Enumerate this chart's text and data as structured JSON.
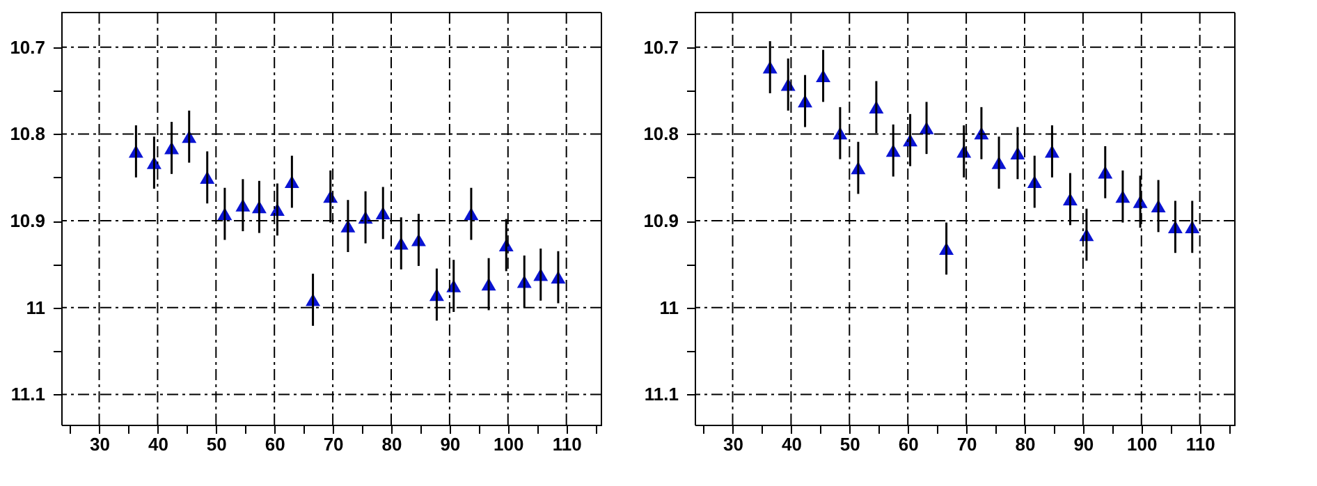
{
  "chart_data": [
    {
      "type": "scatter",
      "marker": "triangle",
      "grid": true,
      "legend": false,
      "x": [
        36.3,
        39.4,
        42.4,
        45.4,
        48.5,
        51.5,
        54.6,
        57.4,
        60.5,
        63.0,
        66.6,
        69.6,
        72.6,
        75.6,
        78.6,
        81.7,
        84.7,
        87.8,
        90.7,
        93.7,
        96.7,
        99.7,
        102.8,
        105.6,
        108.6
      ],
      "series": [
        {
          "color": "#0a14d2",
          "values": [
            10.82,
            10.833,
            10.816,
            10.803,
            10.85,
            10.892,
            10.882,
            10.884,
            10.887,
            10.855,
            10.991,
            10.872,
            10.906,
            10.896,
            10.891,
            10.926,
            10.922,
            10.985,
            10.975,
            10.892,
            10.973,
            10.928,
            10.97,
            10.962,
            10.965
          ],
          "errors": [
            0.03,
            0.03,
            0.03,
            0.03,
            0.03,
            0.03,
            0.03,
            0.03,
            0.03,
            0.03,
            0.03,
            0.03,
            0.03,
            0.03,
            0.03,
            0.03,
            0.03,
            0.03,
            0.03,
            0.03,
            0.03,
            0.03,
            0.03,
            0.03,
            0.03
          ]
        }
      ],
      "xlim": [
        23.5,
        116
      ],
      "ylim": [
        11.135,
        10.66
      ],
      "xticks": [
        {
          "value": 25,
          "label": null
        },
        30,
        {
          "value": 35,
          "label": null
        },
        40,
        {
          "value": 45,
          "label": null
        },
        50,
        {
          "value": 55,
          "label": null
        },
        60,
        {
          "value": 65,
          "label": null
        },
        70,
        {
          "value": 75,
          "label": null
        },
        80,
        {
          "value": 85,
          "label": null
        },
        90,
        {
          "value": 95,
          "label": null
        },
        100,
        {
          "value": 105,
          "label": null
        },
        110,
        {
          "value": 115,
          "label": null
        }
      ],
      "yticks": [
        10.7,
        {
          "value": 10.75,
          "label": null
        },
        10.8,
        {
          "value": 10.85,
          "label": null
        },
        10.9,
        {
          "value": 10.95,
          "label": null
        },
        11,
        {
          "value": 11.05,
          "label": null
        },
        11.1
      ]
    },
    {
      "type": "scatter",
      "marker": "triangle",
      "grid": true,
      "legend": false,
      "x": [
        36.4,
        39.5,
        42.4,
        45.5,
        48.4,
        51.5,
        54.6,
        57.5,
        60.4,
        63.2,
        66.6,
        69.6,
        72.6,
        75.6,
        78.8,
        81.7,
        84.7,
        87.8,
        90.6,
        93.8,
        96.8,
        99.8,
        102.9,
        105.8,
        108.7
      ],
      "series": [
        {
          "color": "#0a14d2",
          "values": [
            10.723,
            10.743,
            10.762,
            10.733,
            10.799,
            10.839,
            10.769,
            10.819,
            10.807,
            10.793,
            10.932,
            10.82,
            10.799,
            10.833,
            10.822,
            10.855,
            10.82,
            10.875,
            10.916,
            10.844,
            10.872,
            10.878,
            10.883,
            10.907,
            10.907
          ],
          "errors": [
            0.03,
            0.03,
            0.03,
            0.03,
            0.03,
            0.03,
            0.03,
            0.03,
            0.03,
            0.03,
            0.03,
            0.03,
            0.03,
            0.03,
            0.03,
            0.03,
            0.03,
            0.03,
            0.03,
            0.03,
            0.03,
            0.03,
            0.03,
            0.03,
            0.03
          ]
        }
      ],
      "xlim": [
        23.5,
        116
      ],
      "ylim": [
        11.135,
        10.66
      ],
      "xticks": [
        {
          "value": 25,
          "label": null
        },
        30,
        {
          "value": 35,
          "label": null
        },
        40,
        {
          "value": 45,
          "label": null
        },
        50,
        {
          "value": 55,
          "label": null
        },
        60,
        {
          "value": 65,
          "label": null
        },
        70,
        {
          "value": 75,
          "label": null
        },
        80,
        {
          "value": 85,
          "label": null
        },
        90,
        {
          "value": 95,
          "label": null
        },
        100,
        {
          "value": 105,
          "label": null
        },
        110,
        {
          "value": 115,
          "label": null
        }
      ],
      "yticks": [
        10.7,
        {
          "value": 10.75,
          "label": null
        },
        10.8,
        {
          "value": 10.85,
          "label": null
        },
        10.9,
        {
          "value": 10.95,
          "label": null
        },
        11,
        {
          "value": 11.05,
          "label": null
        },
        11.1
      ]
    }
  ]
}
